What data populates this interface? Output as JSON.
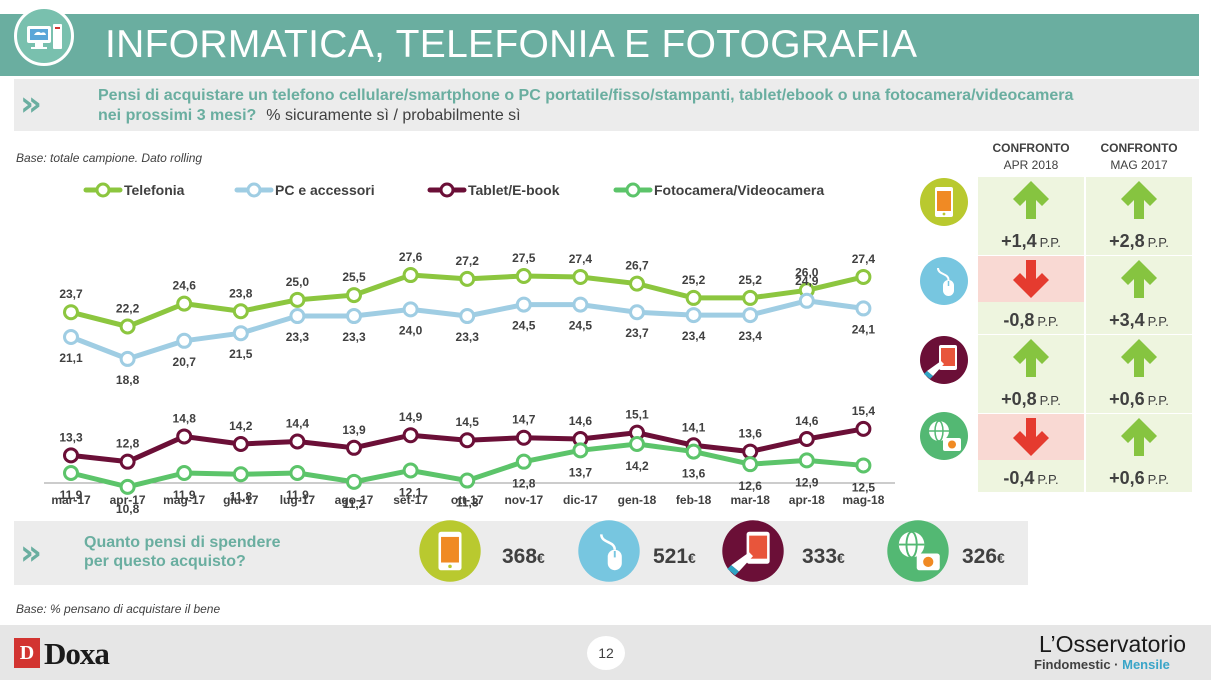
{
  "header": {
    "title": "INFORMATICA, TELEFONIA E FOTOGRAFIA",
    "question_line1": "Pensi di acquistare un telefono cellulare/smartphone o PC portatile/fisso/stampanti, tablet/ebook o una fotocamera/videocamera",
    "question_line2_bold": "nei prossimi 3 mesi?",
    "question_line2_normal": "% sicuramente sì / probabilmente sì"
  },
  "base_note": "Base: totale campione. Dato rolling",
  "base_note_2": "Base: % pensano di acquistare il bene",
  "colors": {
    "telefonia": "#8cc63f",
    "pc": "#9fcde3",
    "tablet": "#6b0f37",
    "foto": "#5cc46a",
    "teal": "#6aaea0",
    "up_arrow": "#86c440",
    "down_arrow": "#e53b2f",
    "cell_green": "#eef5df",
    "cell_red": "#f9d9d3"
  },
  "chart_data": {
    "type": "line",
    "categories": [
      "mar-17",
      "apr-17",
      "mag-17",
      "giu-17",
      "lug-17",
      "ago-17",
      "set-17",
      "ott-17",
      "nov-17",
      "dic-17",
      "gen-18",
      "feb-18",
      "mar-18",
      "apr-18",
      "mag-18"
    ],
    "series": [
      {
        "name": "Telefonia",
        "color": "#8cc63f",
        "values": [
          23.7,
          22.2,
          24.6,
          23.8,
          25.0,
          25.5,
          27.6,
          27.2,
          27.5,
          27.4,
          26.7,
          25.2,
          25.2,
          26.0,
          27.4
        ]
      },
      {
        "name": "PC e accessori",
        "color": "#9fcde3",
        "values": [
          21.1,
          18.8,
          20.7,
          21.5,
          23.3,
          23.3,
          24.0,
          23.3,
          24.5,
          24.5,
          23.7,
          23.4,
          23.4,
          24.9,
          24.1
        ]
      },
      {
        "name": "Tablet/E-book",
        "color": "#6b0f37",
        "values": [
          13.3,
          12.8,
          14.8,
          14.2,
          14.4,
          13.9,
          14.9,
          14.5,
          14.7,
          14.6,
          15.1,
          14.1,
          13.6,
          14.6,
          15.4
        ]
      },
      {
        "name": "Fotocamera/Videocamera",
        "color": "#5cc46a",
        "values": [
          11.9,
          10.8,
          11.9,
          11.8,
          11.9,
          11.2,
          12.1,
          11.3,
          12.8,
          13.7,
          14.2,
          13.6,
          12.6,
          12.9,
          12.5
        ]
      }
    ],
    "labels_text": {
      "Telefonia": [
        "23,7",
        "22,2",
        "24,6",
        "23,8",
        "25,0",
        "25,5",
        "27,6",
        "27,2",
        "27,5",
        "27,4",
        "26,7",
        "25,2",
        "25,2",
        "26,0",
        "27,4"
      ],
      "PC e accessori": [
        "21,1",
        "18,8",
        "20,7",
        "21,5",
        "23,3",
        "23,3",
        "24,0",
        "23,3",
        "24,5",
        "24,5",
        "23,7",
        "23,4",
        "23,4",
        "24,9",
        "24,1"
      ],
      "Tablet/E-book": [
        "13,3",
        "12,8",
        "14,8",
        "14,2",
        "14,4",
        "13,9",
        "14,9",
        "14,5",
        "14,7",
        "14,6",
        "15,1",
        "14,1",
        "13,6",
        "14,6",
        "15,4"
      ],
      "Fotocamera/Videocamera": [
        "11,9",
        "10,8",
        "11,9",
        "11,8",
        "11,9",
        "11,2",
        "12,1",
        "11,3",
        "12,8",
        "13,7",
        "14,2",
        "13,6",
        "12,6",
        "12,9",
        "12,5"
      ]
    },
    "legend_position": "top",
    "grid": false
  },
  "comparison": {
    "header_1_bold": "CONFRONTO",
    "header_1_sub": "APR 2018",
    "header_2_bold": "CONFRONTO",
    "header_2_sub": "MAG 2017",
    "unit": "P.P.",
    "rows": [
      {
        "icon": "smartphone-icon",
        "apr": {
          "direction": "up",
          "value": "+1,4"
        },
        "mag": {
          "direction": "up",
          "value": "+2,8"
        }
      },
      {
        "icon": "mouse-icon",
        "apr": {
          "direction": "down",
          "value": "-0,8"
        },
        "mag": {
          "direction": "up",
          "value": "+3,4"
        }
      },
      {
        "icon": "tablet-icon",
        "apr": {
          "direction": "up",
          "value": "+0,8"
        },
        "mag": {
          "direction": "up",
          "value": "+0,6"
        }
      },
      {
        "icon": "camera-globe-icon",
        "apr": {
          "direction": "down",
          "value": "-0,4"
        },
        "mag": {
          "direction": "up",
          "value": "+0,6"
        }
      }
    ]
  },
  "spend": {
    "question": "Quanto pensi di spendere per questo acquisto?",
    "question_line1": "Quanto pensi di spendere",
    "question_line2": "per questo acquisto?",
    "items": [
      {
        "icon": "smartphone-icon",
        "amount": "368",
        "currency": "€"
      },
      {
        "icon": "mouse-icon",
        "amount": "521",
        "currency": "€"
      },
      {
        "icon": "tablet-icon",
        "amount": "333",
        "currency": "€"
      },
      {
        "icon": "camera-globe-icon",
        "amount": "326",
        "currency": "€"
      }
    ]
  },
  "footer": {
    "page_number": "12",
    "brand": "Doxa",
    "brand_letter": "D",
    "observatory_line1": "L’Osservatorio",
    "observatory_line2_main": "Findomestic · ",
    "observatory_line2_accent": "Mensile"
  }
}
